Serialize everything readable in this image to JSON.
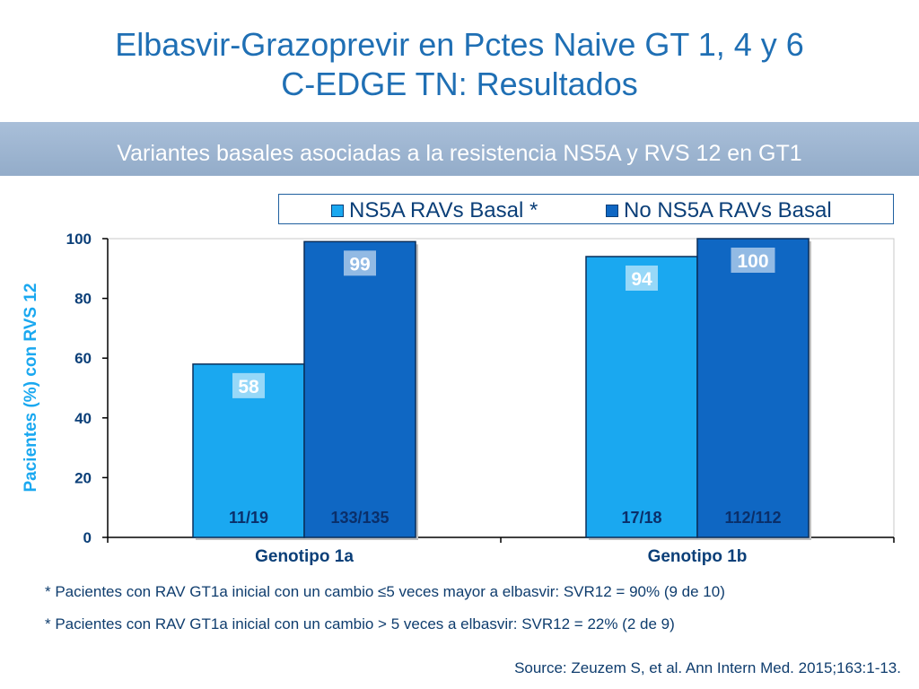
{
  "slide": {
    "title_line1": "Elbasvir-Grazoprevir en Pctes Naive  GT 1, 4 y 6",
    "title_line2": "C-EDGE TN: Resultados",
    "subtitle": "Variantes basales asociadas a la resistencia NS5A y RVS 12 en GT1",
    "footnote1": "* Pacientes con RAV GT1a inicial con un cambio ≤5 veces mayor a elbasvir: SVR12 = 90% (9 de 10)",
    "footnote2": "* Pacientes con RAV GT1a inicial con un cambio > 5 veces a elbasvir: SVR12 = 22% (2 de 9)",
    "source": "Source: Zeuzem S, et al. Ann Intern Med. 2015;163:1-13."
  },
  "colors": {
    "title": "#1f6fb4",
    "band": "#9bb3cf",
    "series1": "#1aa8f0",
    "series2": "#0f67c3",
    "axis_text": "#0b3f78",
    "ylabel": "#1aa8f0"
  },
  "chart_data": {
    "type": "bar",
    "title": "",
    "xlabel": "",
    "ylabel": "Pacientes  (%) con  RVS 12",
    "ylim": [
      0,
      100
    ],
    "yticks": [
      0,
      20,
      40,
      60,
      80,
      100
    ],
    "grid": false,
    "legend_position": "top",
    "categories": [
      "Genotipo 1a",
      "Genotipo 1b"
    ],
    "series": [
      {
        "name": "NS5A RAVs Basal *",
        "values": [
          58,
          94
        ],
        "fractions": [
          "11/19",
          "17/18"
        ]
      },
      {
        "name": "No NS5A RAVs Basal",
        "values": [
          99,
          100
        ],
        "fractions": [
          "133/135",
          "112/112"
        ]
      }
    ]
  }
}
